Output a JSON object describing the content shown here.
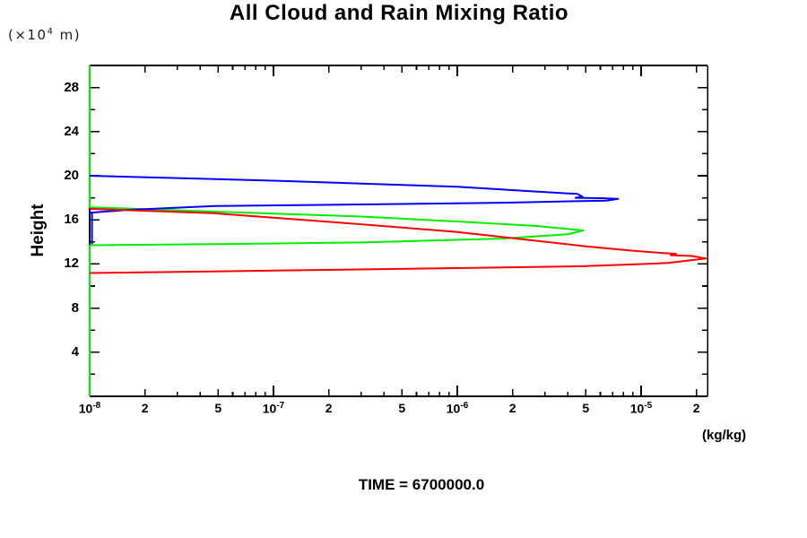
{
  "chart_data": {
    "type": "line",
    "title": "All Cloud and Rain Mixing Ratio",
    "annotation": "TIME = 6700000.0",
    "ylabel": "Height",
    "grid": false,
    "legend": "none",
    "x_axis": {
      "scale": "log",
      "unit": "(kg/kg)",
      "min": 1e-08,
      "max": 2.3e-05,
      "ticks": [
        {
          "v": 1e-08,
          "base": "10",
          "exp": "-8"
        },
        {
          "v": 2e-08,
          "base": "2"
        },
        {
          "v": 5e-08,
          "base": "5"
        },
        {
          "v": 1e-07,
          "base": "10",
          "exp": "-7"
        },
        {
          "v": 2e-07,
          "base": "2"
        },
        {
          "v": 5e-07,
          "base": "5"
        },
        {
          "v": 1e-06,
          "base": "10",
          "exp": "-6"
        },
        {
          "v": 2e-06,
          "base": "2"
        },
        {
          "v": 5e-06,
          "base": "5"
        },
        {
          "v": 1e-05,
          "base": "10",
          "exp": "-5"
        },
        {
          "v": 2e-05,
          "base": "2"
        }
      ]
    },
    "y_axis": {
      "unit_prefix": "(×10",
      "unit_sup": "4",
      "unit_suffix": " m)",
      "min": 0,
      "max": 30,
      "minor_step": 2,
      "major_step": 4,
      "ticks": [
        {
          "v": 4,
          "label": "4"
        },
        {
          "v": 8,
          "label": "8"
        },
        {
          "v": 12,
          "label": "12"
        },
        {
          "v": 16,
          "label": "16"
        },
        {
          "v": 20,
          "label": "20"
        },
        {
          "v": 24,
          "label": "24"
        },
        {
          "v": 28,
          "label": "28"
        }
      ]
    },
    "series": [
      {
        "name": "green-profile",
        "color": "#00ee00",
        "peak_value": 4.85e-06,
        "peak_height": 15.0,
        "points": [
          [
            1e-08,
            30.0
          ],
          [
            1e-08,
            17.15
          ],
          [
            4.7e-08,
            16.75
          ],
          [
            3e-07,
            16.3
          ],
          [
            1e-06,
            15.85
          ],
          [
            2.7e-06,
            15.45
          ],
          [
            4.85e-06,
            15.04
          ],
          [
            4e-06,
            14.7
          ],
          [
            1.75e-06,
            14.3
          ],
          [
            3e-07,
            13.95
          ],
          [
            4.7e-08,
            13.8
          ],
          [
            1e-08,
            13.7
          ],
          [
            1e-08,
            0.0
          ]
        ]
      },
      {
        "name": "blue-profile",
        "color": "#0000ff",
        "peak_value": 7.5e-06,
        "peak_height": 17.9,
        "points": [
          [
            1e-08,
            20.0
          ],
          [
            1e-07,
            19.55
          ],
          [
            1e-06,
            19.0
          ],
          [
            2.5e-06,
            18.6
          ],
          [
            4.5e-06,
            18.35
          ],
          [
            4.8e-06,
            18.1
          ],
          [
            4.4e-06,
            18.0
          ],
          [
            6e-06,
            17.97
          ],
          [
            7.5e-06,
            17.9
          ],
          [
            6.5e-06,
            17.75
          ],
          [
            1.75e-06,
            17.55
          ],
          [
            3e-07,
            17.4
          ],
          [
            4.8e-08,
            17.25
          ],
          [
            1.6e-08,
            16.9
          ],
          [
            1e-08,
            16.65
          ],
          [
            1.03e-08,
            16.6
          ],
          [
            1.03e-08,
            13.8
          ]
        ]
      },
      {
        "name": "red-profile",
        "color": "#ff0000",
        "peak_value": 2.25e-05,
        "peak_height": 12.5,
        "points": [
          [
            1e-08,
            17.0
          ],
          [
            4.7e-08,
            16.6
          ],
          [
            3e-07,
            15.6
          ],
          [
            1e-06,
            14.9
          ],
          [
            1.75e-06,
            14.45
          ],
          [
            5e-06,
            13.6
          ],
          [
            9e-06,
            13.2
          ],
          [
            1.3e-05,
            13.0
          ],
          [
            1.55e-05,
            12.92
          ],
          [
            1.45e-05,
            12.8
          ],
          [
            1.9e-05,
            12.72
          ],
          [
            2.25e-05,
            12.5
          ],
          [
            1.4e-05,
            12.1
          ],
          [
            1.05e-05,
            12.0
          ],
          [
            4.8e-06,
            11.8
          ],
          [
            1e-06,
            11.63
          ],
          [
            1e-07,
            11.4
          ],
          [
            3e-08,
            11.28
          ],
          [
            1e-08,
            11.18
          ]
        ]
      }
    ]
  }
}
